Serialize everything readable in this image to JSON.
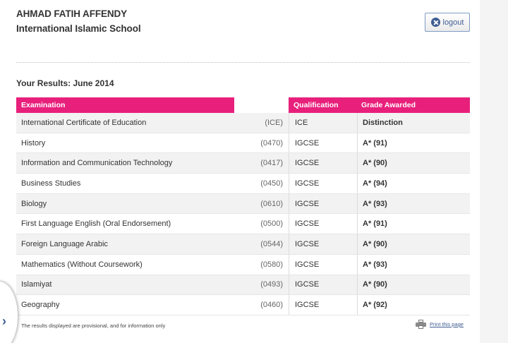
{
  "header": {
    "student_name": "AHMAD FATIH AFFENDY",
    "school": "International Islamic School"
  },
  "logout": {
    "label": "logout",
    "icon": "close-circle-icon"
  },
  "results_title": "Your Results: June 2014",
  "table": {
    "columns": {
      "examination": "Examination",
      "qualification": "Qualification",
      "grade": "Grade Awarded"
    },
    "rows": [
      {
        "subject": "International Certificate of Education",
        "code": "(ICE)",
        "qualification": "ICE",
        "grade": "Distinction"
      },
      {
        "subject": "History",
        "code": "(0470)",
        "qualification": "IGCSE",
        "grade": "A* (91)"
      },
      {
        "subject": "Information and Communication Technology",
        "code": "(0417)",
        "qualification": "IGCSE",
        "grade": "A* (90)"
      },
      {
        "subject": "Business Studies",
        "code": "(0450)",
        "qualification": "IGCSE",
        "grade": "A* (94)"
      },
      {
        "subject": "Biology",
        "code": "(0610)",
        "qualification": "IGCSE",
        "grade": "A* (93)"
      },
      {
        "subject": "First Language English (Oral Endorsement)",
        "code": "(0500)",
        "qualification": "IGCSE",
        "grade": "A* (91)"
      },
      {
        "subject": "Foreign Language Arabic",
        "code": "(0544)",
        "qualification": "IGCSE",
        "grade": "A* (90)"
      },
      {
        "subject": "Mathematics (Without Coursework)",
        "code": "(0580)",
        "qualification": "IGCSE",
        "grade": "A* (93)"
      },
      {
        "subject": "Islamiyat",
        "code": "(0493)",
        "qualification": "IGCSE",
        "grade": "A* (90)"
      },
      {
        "subject": "Geography",
        "code": "(0460)",
        "qualification": "IGCSE",
        "grade": "A* (92)"
      }
    ]
  },
  "footer": {
    "note": "The results displayed are provisional, and for information only",
    "print_label": "Print this page",
    "print_icon": "printer-icon"
  },
  "side_tab": {
    "arrow": "›",
    "icon": "chevron-right-icon"
  },
  "colors": {
    "accent": "#e8207c",
    "link": "#3e5d91"
  }
}
